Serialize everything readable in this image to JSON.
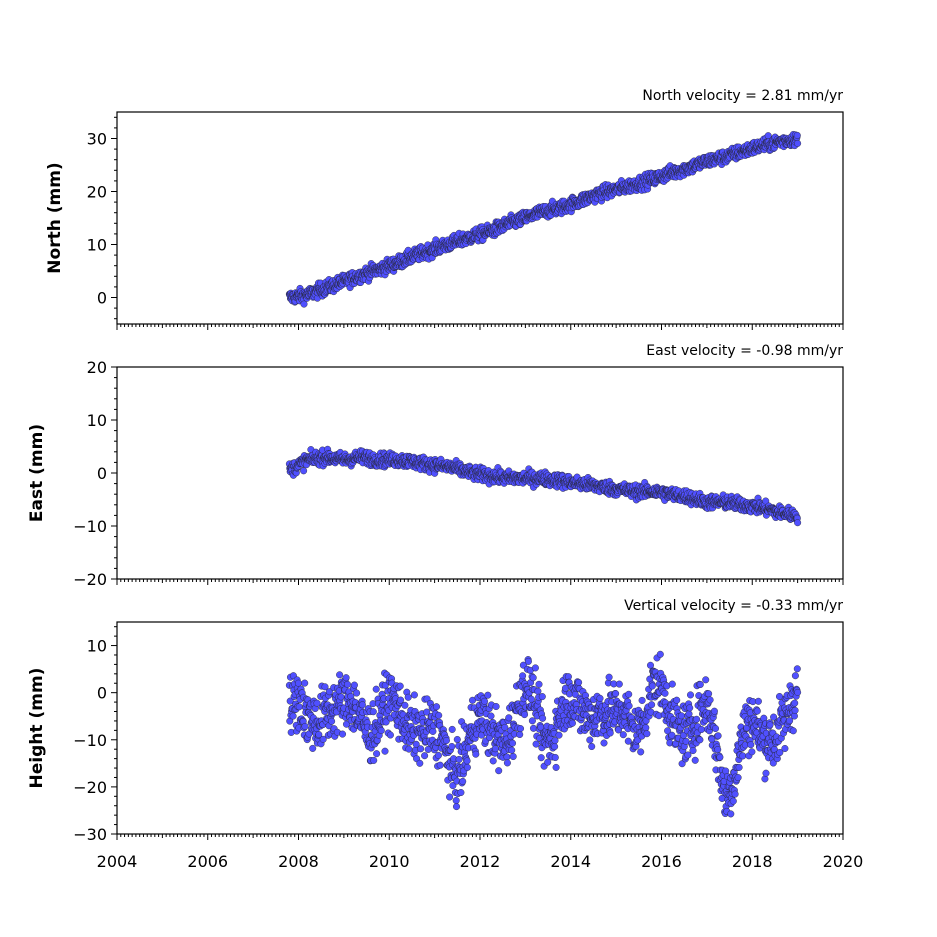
{
  "chart_data": [
    {
      "type": "scatter",
      "title": "North velocity = 2.81 mm/yr",
      "xlabel": "",
      "ylabel": "North (mm)",
      "xlim": [
        2004,
        2020
      ],
      "ylim": [
        -5,
        35
      ],
      "yticks": [
        0,
        10,
        20,
        30
      ],
      "xticks": [
        2004,
        2006,
        2008,
        2010,
        2012,
        2014,
        2016,
        2018,
        2020
      ],
      "show_xtick_labels": false,
      "grid": false,
      "marker_color": "#5050ff",
      "x": [
        2007.8,
        2008.2,
        2008.6,
        2009.0,
        2009.4,
        2009.8,
        2010.2,
        2010.6,
        2011.0,
        2011.4,
        2011.8,
        2012.2,
        2012.6,
        2013.0,
        2013.4,
        2013.8,
        2014.2,
        2014.6,
        2015.0,
        2015.4,
        2015.8,
        2016.2,
        2016.6,
        2017.0,
        2017.4,
        2017.8,
        2018.2,
        2018.6,
        2019.0
      ],
      "y": [
        0.0,
        0.5,
        1.8,
        3.0,
        4.3,
        5.4,
        6.6,
        8.0,
        9.2,
        10.3,
        11.4,
        12.4,
        13.8,
        15.0,
        16.2,
        17.0,
        18.2,
        19.5,
        20.4,
        21.3,
        22.3,
        23.5,
        24.5,
        25.7,
        26.5,
        27.6,
        28.6,
        29.4,
        30.0
      ]
    },
    {
      "type": "scatter",
      "title": "East velocity = -0.98 mm/yr",
      "xlabel": "",
      "ylabel": "East (mm)",
      "xlim": [
        2004,
        2020
      ],
      "ylim": [
        -20,
        20
      ],
      "yticks": [
        -20,
        -10,
        0,
        10,
        20
      ],
      "xticks": [
        2004,
        2006,
        2008,
        2010,
        2012,
        2014,
        2016,
        2018,
        2020
      ],
      "show_xtick_labels": false,
      "grid": false,
      "marker_color": "#5050ff",
      "x": [
        2007.8,
        2008.2,
        2008.6,
        2009.0,
        2009.4,
        2009.8,
        2010.2,
        2010.6,
        2011.0,
        2011.4,
        2011.8,
        2012.2,
        2012.6,
        2013.0,
        2013.4,
        2013.8,
        2014.2,
        2014.6,
        2015.0,
        2015.4,
        2015.8,
        2016.2,
        2016.6,
        2017.0,
        2017.4,
        2017.8,
        2018.2,
        2018.6,
        2019.0
      ],
      "y": [
        0.5,
        2.5,
        3.0,
        2.5,
        3.0,
        2.5,
        2.5,
        2.0,
        1.5,
        1.0,
        0.0,
        -0.5,
        -1.0,
        -1.0,
        -1.0,
        -1.5,
        -2.0,
        -2.5,
        -3.0,
        -3.5,
        -3.5,
        -4.0,
        -4.5,
        -5.5,
        -5.5,
        -6.0,
        -6.5,
        -7.5,
        -8.0
      ]
    },
    {
      "type": "scatter",
      "title": "Vertical velocity = -0.33 mm/yr",
      "xlabel": "",
      "ylabel": "Height (mm)",
      "xlim": [
        2004,
        2020
      ],
      "ylim": [
        -30,
        15
      ],
      "yticks": [
        -30,
        -20,
        -10,
        0,
        10
      ],
      "xticks": [
        2004,
        2006,
        2008,
        2010,
        2012,
        2014,
        2016,
        2018,
        2020
      ],
      "show_xtick_labels": true,
      "grid": false,
      "marker_color": "#5050ff",
      "x": [
        2007.8,
        2008.2,
        2008.6,
        2009.0,
        2009.4,
        2009.8,
        2010.2,
        2010.6,
        2011.0,
        2011.4,
        2011.8,
        2012.2,
        2012.6,
        2013.0,
        2013.4,
        2013.8,
        2014.2,
        2014.6,
        2015.0,
        2015.4,
        2015.8,
        2016.2,
        2016.6,
        2017.0,
        2017.4,
        2017.8,
        2018.2,
        2018.6,
        2019.0
      ],
      "y": [
        -3,
        -8,
        0,
        -6,
        -4,
        -5,
        -6,
        -4,
        -12,
        -15,
        -8,
        -10,
        -6,
        -2,
        -8,
        -3,
        -6,
        0,
        -8,
        -6,
        2,
        -8,
        -4,
        -6,
        -20,
        -8,
        -12,
        -4,
        -3
      ]
    }
  ]
}
